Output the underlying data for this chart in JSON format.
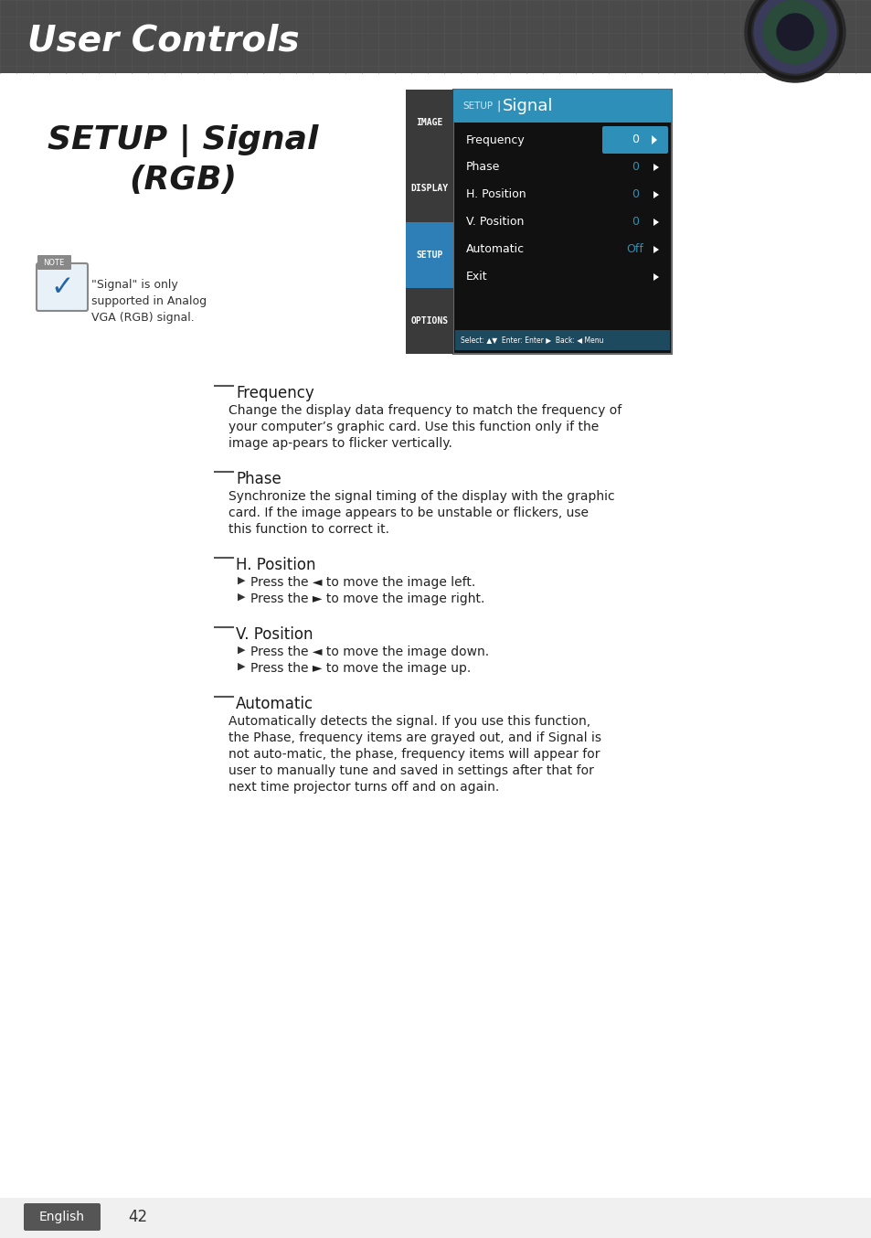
{
  "page_bg": "#ffffff",
  "header_bg_left": "#4a4a4a",
  "header_bg_right": "#6a6a6a",
  "header_text": "User Controls",
  "header_text_color": "#ffffff",
  "title_text": "SETUP | Signal\n(RGB)",
  "title_color": "#1a1a1a",
  "note_text": "❖  “Signal” is only\n    supported in Analog\n    VGA (RGB) signal.",
  "menu_bg": "#0a0a0a",
  "menu_header_bg": "#2e90b8",
  "menu_header_text": "SETUP  |  Signal",
  "menu_sidebar_bg": "#3a3a3a",
  "menu_sidebar_active_bg": "#2e7fb8",
  "menu_sidebar_items": [
    "IMAGE",
    "DISPLAY",
    "SETUP",
    "OPTIONS"
  ],
  "menu_sidebar_active": 2,
  "menu_items": [
    "Frequency",
    "Phase",
    "H. Position",
    "V. Position",
    "Automatic",
    "Exit"
  ],
  "menu_values": [
    "0",
    "0",
    "0",
    "0",
    "Off",
    ""
  ],
  "menu_active_item": 0,
  "menu_active_color": "#2e90b8",
  "menu_bottom_bar_bg": "#1e4a60",
  "menu_bottom_text": "Select:  ▲▼  Enter:  Enter ►  Back:  ◄  Menu",
  "sections": [
    {
      "title": "Frequency",
      "underline": true,
      "body": "Change the display data frequency to match the frequency of your computer’s graphic card. Use this function only if the image ap-pears to flicker vertically."
    },
    {
      "title": "Phase",
      "underline": true,
      "body": "Synchronize the signal timing of the display with the graphic card. If the image appears to be unstable or flickers, use this function to correct it."
    },
    {
      "title": "H. Position",
      "underline": true,
      "body": null,
      "bullets": [
        "Press the ◄ to move the image left.",
        "Press the ► to move the image right."
      ]
    },
    {
      "title": "V. Position",
      "underline": true,
      "body": null,
      "bullets": [
        "Press the ◄ to move the image down.",
        "Press the ► to move the image up."
      ]
    },
    {
      "title": "Automatic",
      "underline": true,
      "body": "Automatically detects the signal. If you use this function, the Phase, frequency items are grayed out, and if Signal is not auto-matic, the phase, frequency items will appear for user to manually tune and saved in settings after that for next time projector turns off and on again."
    }
  ],
  "footer_bg": "#555555",
  "footer_text": "English",
  "footer_page": "42",
  "footer_text_color": "#ffffff"
}
